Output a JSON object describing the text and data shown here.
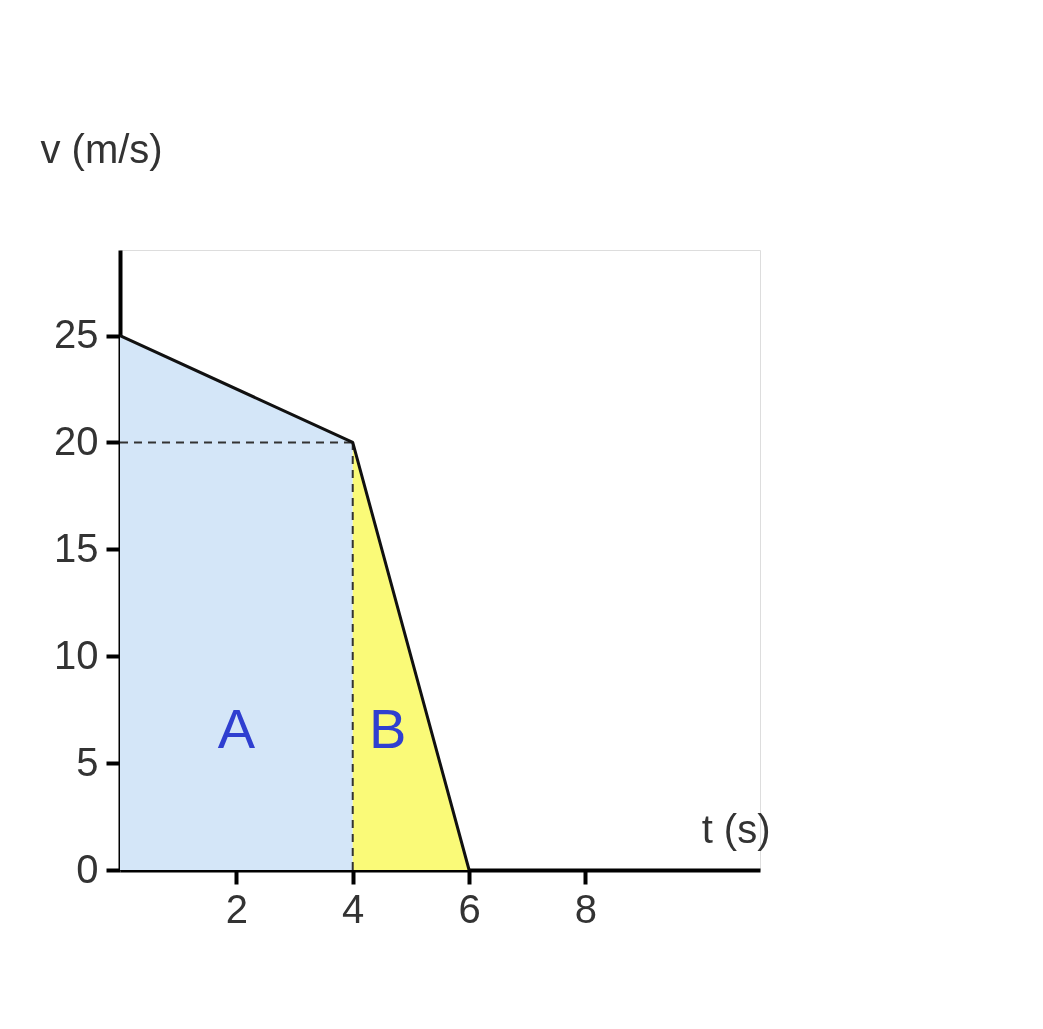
{
  "chart_data": {
    "type": "line",
    "xlabel": "t (s)",
    "ylabel": "v (m/s)",
    "xlim": [
      0,
      11
    ],
    "ylim": [
      0,
      29
    ],
    "xticks": [
      2,
      4,
      6,
      8
    ],
    "yticks": [
      0,
      5,
      10,
      15,
      20,
      25
    ],
    "grid": false,
    "series": [
      {
        "type": "area",
        "color": "#d4e6f8",
        "x": [
          0,
          4
        ],
        "values": [
          25,
          20
        ]
      },
      {
        "type": "area",
        "color": "#fafa78",
        "x": [
          4,
          6
        ],
        "values": [
          20,
          0
        ]
      },
      {
        "type": "line",
        "color": "#333333",
        "line_style": "dashed",
        "x": [
          0,
          4
        ],
        "values": [
          20,
          20
        ]
      },
      {
        "type": "line",
        "color": "#333333",
        "line_style": "dashed",
        "x": [
          4,
          4
        ],
        "values": [
          0,
          20
        ]
      },
      {
        "color": "#111111",
        "line_style": "solid",
        "x": [
          0,
          4,
          6
        ],
        "values": [
          25,
          20,
          0
        ]
      }
    ],
    "annotations": [
      "A",
      "B"
    ]
  }
}
